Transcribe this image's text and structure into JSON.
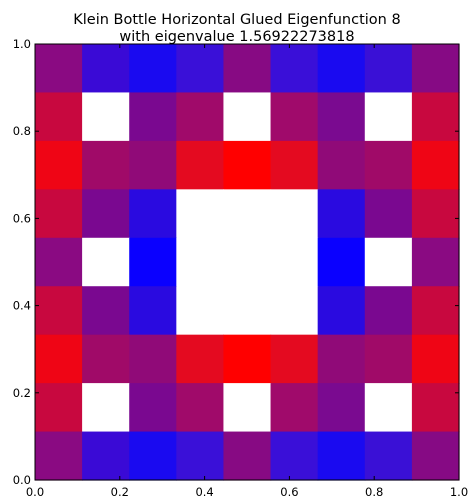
{
  "chart_data": {
    "type": "heatmap",
    "title": "Klein Bottle Horizontal Glued Eigenfunction 8",
    "subtitle": "with eigenvalue 1.56922273818",
    "xlabel": "",
    "ylabel": "",
    "xlim": [
      0.0,
      1.0
    ],
    "ylim": [
      0.0,
      1.0
    ],
    "grid": false,
    "x_ticks": [
      "0.0",
      "0.2",
      "0.4",
      "0.6",
      "0.8",
      "1.0"
    ],
    "y_ticks": [
      "0.0",
      "0.2",
      "0.4",
      "0.6",
      "0.8",
      "1.0"
    ],
    "rows": 9,
    "cols": 9,
    "cells_top_to_bottom": [
      [
        "#8a0a82",
        "#3a0ad6",
        "#1a0af0",
        "#3a10d8",
        "#870a83",
        "#3a0fd8",
        "#1a0af0",
        "#3a10d6",
        "#860a84"
      ],
      [
        "#c8083f",
        "#ffffff",
        "#7a0890",
        "#a00a6a",
        "#ffffff",
        "#a00a6b",
        "#7a0a90",
        "#ffffff",
        "#c8083f"
      ],
      [
        "#ef0515",
        "#a00a68",
        "#900a78",
        "#e40a20",
        "#ff0000",
        "#e40a20",
        "#900a78",
        "#a00a68",
        "#ef0515"
      ],
      [
        "#c8083f",
        "#7a0890",
        "#2a0ae0",
        "#ffffff",
        "#ffffff",
        "#ffffff",
        "#2a0ae0",
        "#7a0890",
        "#c8083f"
      ],
      [
        "#8a0a82",
        "#ffffff",
        "#0a00ff",
        "#ffffff",
        "#ffffff",
        "#ffffff",
        "#0a00ff",
        "#ffffff",
        "#8a0a82"
      ],
      [
        "#c8083f",
        "#7a0890",
        "#2a0ae0",
        "#ffffff",
        "#ffffff",
        "#ffffff",
        "#2a0ae0",
        "#7a0890",
        "#c8083f"
      ],
      [
        "#ef0515",
        "#a00a68",
        "#900a78",
        "#e40a20",
        "#ff0000",
        "#e40a20",
        "#900a78",
        "#a00a68",
        "#ef0515"
      ],
      [
        "#c8083f",
        "#ffffff",
        "#7a0890",
        "#a00a6a",
        "#ffffff",
        "#a00a6b",
        "#7a0a90",
        "#ffffff",
        "#c8083f"
      ],
      [
        "#8a0a82",
        "#3a0ad6",
        "#1a0af0",
        "#3a10d8",
        "#870a83",
        "#3a0fd8",
        "#1a0af0",
        "#3a10d6",
        "#860a84"
      ]
    ]
  }
}
